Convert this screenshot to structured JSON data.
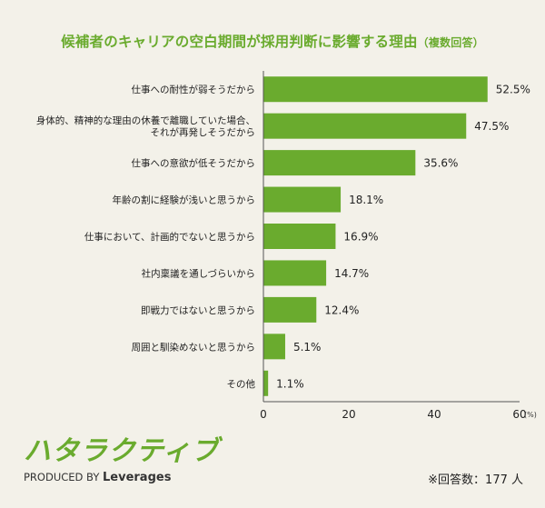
{
  "title": "候補者のキャリアの空白期間が採用判断に影響する理由",
  "title_note": "（複数回答）",
  "chart_data": {
    "type": "bar",
    "orientation": "horizontal",
    "categories": [
      "仕事への耐性が弱そうだから",
      "身体的、精神的な理由の休養で離職していた場合、\nそれが再発しそうだから",
      "仕事への意欲が低そうだから",
      "年齢の割に経験が浅いと思うから",
      "仕事において、計画的でないと思うから",
      "社内稟議を通しづらいから",
      "即戦力ではないと思うから",
      "周囲と馴染めないと思うから",
      "その他"
    ],
    "values": [
      52.5,
      47.5,
      35.6,
      18.1,
      16.9,
      14.7,
      12.4,
      5.1,
      1.1
    ],
    "value_labels": [
      "52.5%",
      "47.5%",
      "35.6%",
      "18.1%",
      "16.9%",
      "14.7%",
      "12.4%",
      "5.1%",
      "1.1%"
    ],
    "xlim": [
      0,
      60
    ],
    "xticks": [
      "0",
      "20",
      "40",
      "60"
    ],
    "x_unit": "(%)",
    "bar_color": "#6aab2e",
    "grid": false
  },
  "logo": {
    "name": "ハタラクティブ",
    "produced_by": "PRODUCED BY",
    "brand": "Leverages"
  },
  "sample_note": "※回答数：177 人"
}
